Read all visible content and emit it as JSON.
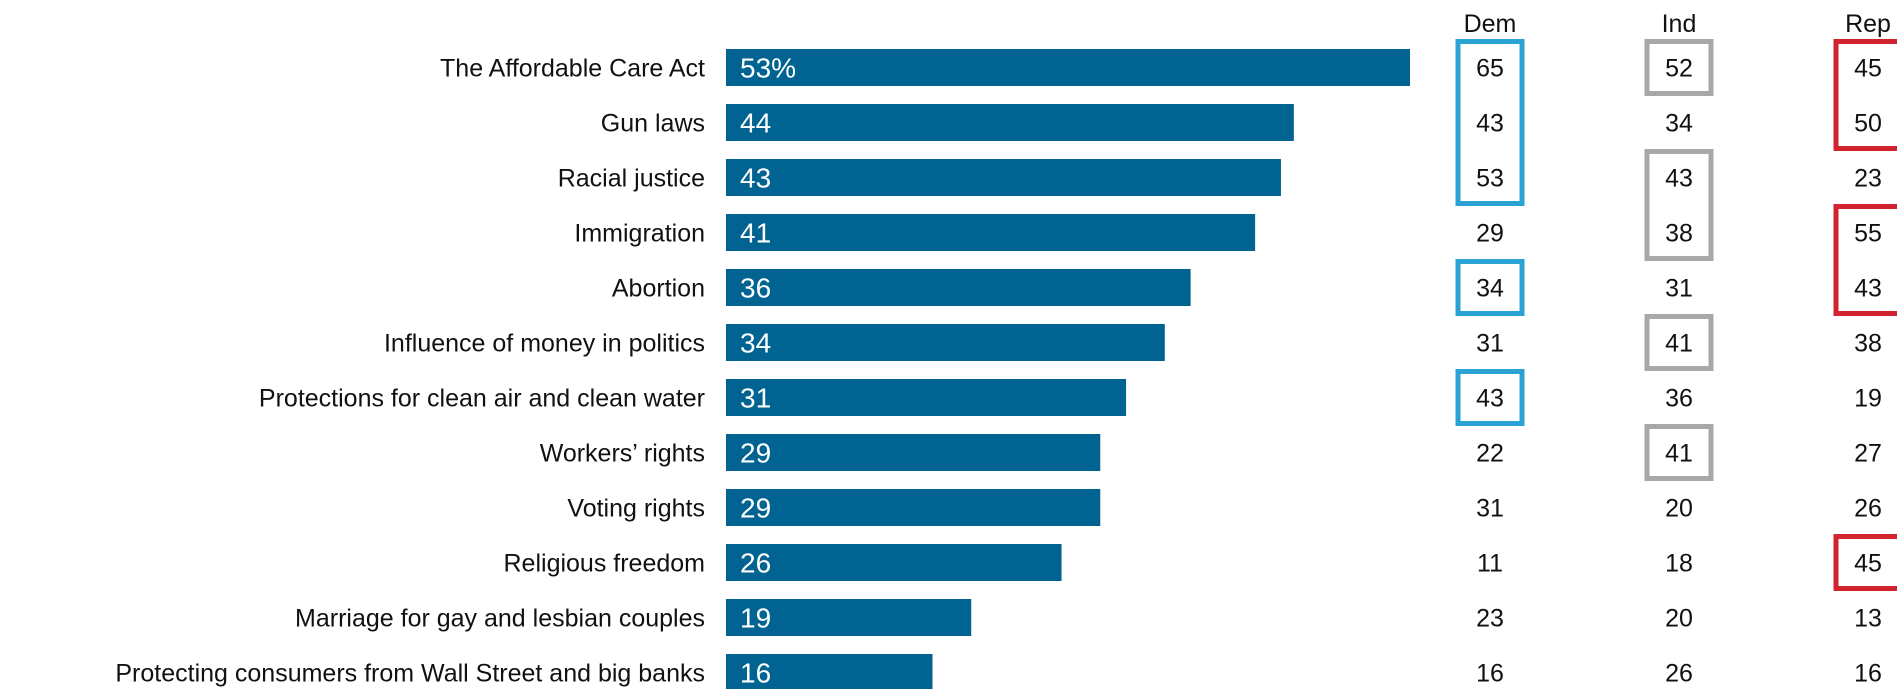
{
  "chart_data": {
    "type": "bar",
    "orientation": "horizontal",
    "categories": [
      "The Affordable Care Act",
      "Gun laws",
      "Racial justice",
      "Immigration",
      "Abortion",
      "Influence of money in politics",
      "Protections for clean air and clean water",
      "Workers’ rights",
      "Voting rights",
      "Religious freedom",
      "Marriage for gay and lesbian couples",
      "Protecting consumers from Wall Street and big banks"
    ],
    "values": [
      53,
      44,
      43,
      41,
      36,
      34,
      31,
      29,
      29,
      26,
      19,
      16
    ],
    "value_labels": [
      "53%",
      "44",
      "43",
      "41",
      "36",
      "34",
      "31",
      "29",
      "29",
      "26",
      "19",
      "16"
    ],
    "xlim": [
      0,
      53
    ],
    "bar_color": "#006391",
    "grid": false,
    "legend": "none",
    "columns": [
      {
        "name": "Dem",
        "values": [
          65,
          43,
          53,
          29,
          34,
          31,
          43,
          22,
          31,
          11,
          23,
          16
        ],
        "highlight_color": "#2aa3d4",
        "highlight_groups": [
          [
            0,
            2
          ],
          [
            4,
            4
          ],
          [
            6,
            6
          ]
        ]
      },
      {
        "name": "Ind",
        "values": [
          52,
          34,
          43,
          38,
          31,
          41,
          36,
          41,
          20,
          18,
          20,
          26
        ],
        "highlight_color": "#a8a8a8",
        "highlight_groups": [
          [
            0,
            0
          ],
          [
            2,
            3
          ],
          [
            5,
            5
          ],
          [
            7,
            7
          ]
        ]
      },
      {
        "name": "Rep",
        "values": [
          45,
          50,
          23,
          55,
          43,
          38,
          19,
          27,
          26,
          45,
          13,
          16
        ],
        "highlight_color": "#d1242f",
        "highlight_groups": [
          [
            0,
            1
          ],
          [
            3,
            4
          ],
          [
            9,
            9
          ]
        ]
      }
    ]
  }
}
